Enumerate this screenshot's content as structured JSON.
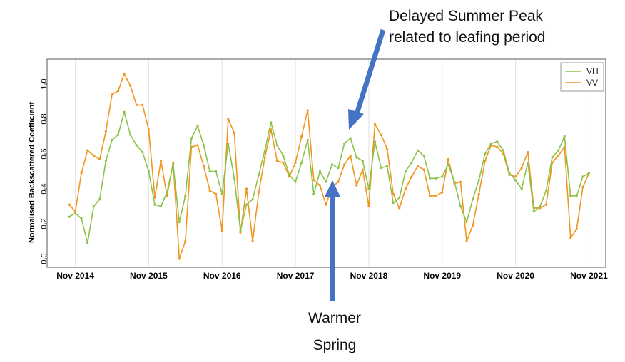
{
  "chart_data": {
    "type": "line",
    "title": "",
    "xlabel": "",
    "ylabel": "Normalised Backscattered Coefficient",
    "ylim": [
      0.0,
      1.1
    ],
    "yticks": [
      "0.0",
      "0.2",
      "0.4",
      "0.6",
      "0.8",
      "1.0"
    ],
    "x_tick_labels": [
      "Nov 2014",
      "Nov 2015",
      "Nov 2016",
      "Nov 2017",
      "Nov 2018",
      "Nov 2019",
      "Nov 2020",
      "Nov 2021"
    ],
    "x_start": "Oct 2014",
    "x_end": "Nov 2021",
    "grid": true,
    "legend_position": "top-right",
    "series": [
      {
        "name": "VH",
        "color": "#8bc34a",
        "values": [
          0.24,
          0.26,
          0.23,
          0.09,
          0.3,
          0.34,
          0.56,
          0.68,
          0.71,
          0.84,
          0.71,
          0.65,
          0.61,
          0.5,
          0.31,
          0.3,
          0.38,
          0.54,
          0.21,
          0.36,
          0.69,
          0.76,
          0.65,
          0.5,
          0.5,
          0.37,
          0.66,
          0.46,
          0.16,
          0.31,
          0.34,
          0.48,
          0.62,
          0.78,
          0.65,
          0.59,
          0.48,
          0.44,
          0.55,
          0.68,
          0.37,
          0.5,
          0.44,
          0.54,
          0.52,
          0.66,
          0.69,
          0.58,
          0.56,
          0.4,
          0.67,
          0.52,
          0.53,
          0.32,
          0.35,
          0.5,
          0.55,
          0.62,
          0.59,
          0.46,
          0.46,
          0.47,
          0.54,
          0.44,
          0.3,
          0.21,
          0.34,
          0.45,
          0.6,
          0.66,
          0.67,
          0.62,
          0.49,
          0.45,
          0.4,
          0.55,
          0.27,
          0.3,
          0.39,
          0.58,
          0.62,
          0.7,
          0.36,
          0.36,
          0.47,
          0.49
        ]
      },
      {
        "name": "VV",
        "color": "#f0961e",
        "values": [
          0.31,
          0.27,
          0.49,
          0.62,
          0.59,
          0.57,
          0.73,
          0.94,
          0.96,
          1.06,
          0.99,
          0.88,
          0.88,
          0.74,
          0.35,
          0.56,
          0.36,
          0.55,
          0.0,
          0.1,
          0.64,
          0.65,
          0.53,
          0.39,
          0.37,
          0.16,
          0.8,
          0.72,
          0.15,
          0.4,
          0.1,
          0.38,
          0.58,
          0.74,
          0.56,
          0.55,
          0.47,
          0.55,
          0.7,
          0.85,
          0.45,
          0.42,
          0.31,
          0.41,
          0.44,
          0.54,
          0.59,
          0.42,
          0.51,
          0.3,
          0.77,
          0.71,
          0.63,
          0.37,
          0.29,
          0.4,
          0.47,
          0.53,
          0.51,
          0.36,
          0.36,
          0.38,
          0.57,
          0.43,
          0.44,
          0.1,
          0.19,
          0.37,
          0.56,
          0.65,
          0.64,
          0.6,
          0.48,
          0.47,
          0.52,
          0.61,
          0.29,
          0.29,
          0.31,
          0.55,
          0.59,
          0.64,
          0.12,
          0.17,
          0.41,
          0.49
        ]
      }
    ]
  },
  "annotations": {
    "top_line1": "Delayed Summer Peak",
    "top_line2": "related to leafing period",
    "bottom_line1": "Warmer",
    "bottom_line2": "Spring",
    "arrow_color": "#4472c4"
  }
}
